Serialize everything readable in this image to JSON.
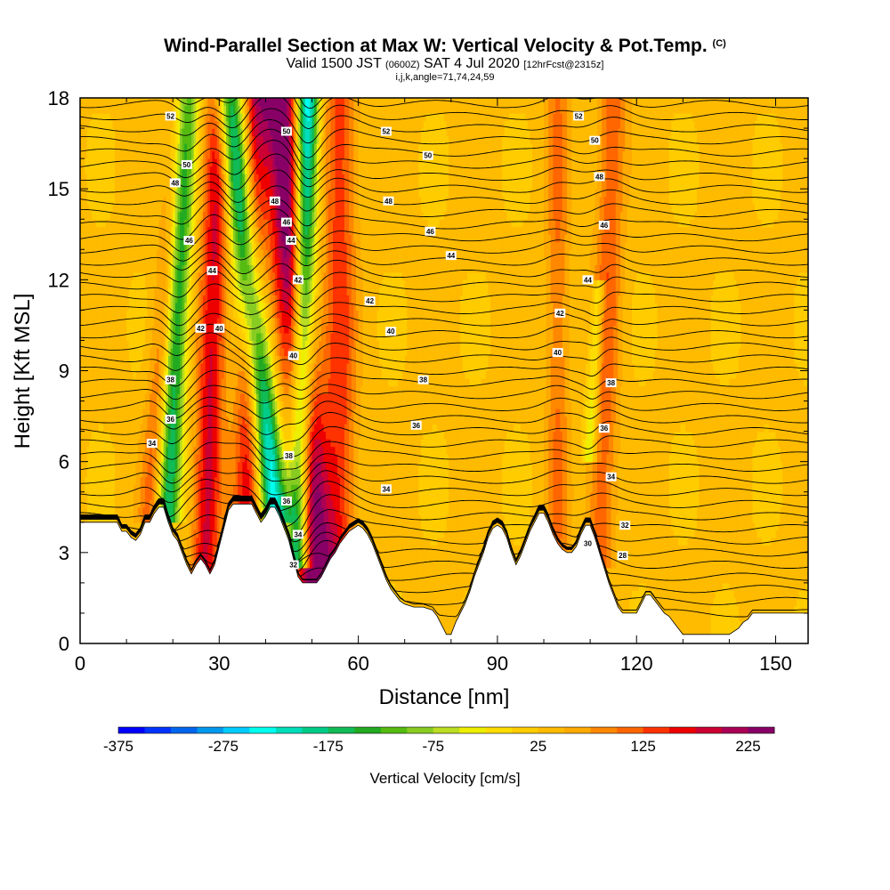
{
  "header": {
    "title": "Wind-Parallel Section at Max W: Vertical Velocity & Pot.Temp.",
    "title_mark": "(C)",
    "valid_prefix": "Valid 1500 JST",
    "valid_utc": "(0600Z)",
    "valid_date": "SAT 4 Jul 2020",
    "forecast_note": "[12hrFcst@2315z]",
    "indices": "i,j,k,angle=71,74,24,59"
  },
  "chart_data": {
    "type": "heatmap",
    "xlabel": "Distance [nm]",
    "ylabel": "Height [Kft MSL]",
    "xlim": [
      0,
      157
    ],
    "ylim": [
      0,
      18
    ],
    "x_ticks": [
      "0",
      "30",
      "60",
      "90",
      "120",
      "150"
    ],
    "y_ticks": [
      "0",
      "3",
      "6",
      "9",
      "12",
      "15",
      "18"
    ],
    "colorbar": {
      "label": "Vertical Velocity [cm/s]",
      "ticks": [
        "-375",
        "-275",
        "-175",
        "-75",
        "25",
        "125",
        "225"
      ],
      "min": -375,
      "max": 250,
      "step": 25,
      "colors": [
        "#0000ff",
        "#0033ff",
        "#0066ee",
        "#0099ee",
        "#00ccff",
        "#00ffee",
        "#00ddbb",
        "#00cc88",
        "#11bb55",
        "#22aa22",
        "#55bb11",
        "#88cc22",
        "#bbdd22",
        "#eeee00",
        "#ffdd00",
        "#ffcc00",
        "#ffbb00",
        "#ffaa00",
        "#ff8800",
        "#ff6600",
        "#ff3300",
        "#ee0000",
        "#cc0033",
        "#aa0055",
        "#880066"
      ]
    },
    "terrain_top_kft": [
      [
        0,
        4.0
      ],
      [
        4,
        4.0
      ],
      [
        8,
        4.0
      ],
      [
        9,
        3.7
      ],
      [
        10,
        3.7
      ],
      [
        11,
        3.5
      ],
      [
        12,
        3.4
      ],
      [
        13,
        3.6
      ],
      [
        14,
        4.0
      ],
      [
        15,
        4.0
      ],
      [
        16,
        4.3
      ],
      [
        17,
        4.5
      ],
      [
        18,
        4.5
      ],
      [
        19,
        4.0
      ],
      [
        20,
        3.6
      ],
      [
        21,
        3.4
      ],
      [
        22,
        3.0
      ],
      [
        23,
        2.6
      ],
      [
        24,
        2.3
      ],
      [
        25,
        2.6
      ],
      [
        26,
        2.8
      ],
      [
        27,
        2.6
      ],
      [
        28,
        2.3
      ],
      [
        29,
        2.6
      ],
      [
        30,
        3.2
      ],
      [
        31,
        3.8
      ],
      [
        32,
        4.4
      ],
      [
        33,
        4.6
      ],
      [
        34,
        4.6
      ],
      [
        35,
        4.6
      ],
      [
        36,
        4.6
      ],
      [
        37,
        4.6
      ],
      [
        38,
        4.3
      ],
      [
        39,
        4.0
      ],
      [
        40,
        4.2
      ],
      [
        41,
        4.5
      ],
      [
        42,
        4.5
      ],
      [
        43,
        4.2
      ],
      [
        44,
        3.8
      ],
      [
        45,
        3.4
      ],
      [
        46,
        2.8
      ],
      [
        47,
        2.2
      ],
      [
        48,
        2.0
      ],
      [
        49,
        2.0
      ],
      [
        50,
        2.0
      ],
      [
        51,
        2.0
      ],
      [
        52,
        2.2
      ],
      [
        53,
        2.5
      ],
      [
        54,
        2.8
      ],
      [
        55,
        3.0
      ],
      [
        56,
        3.3
      ],
      [
        57,
        3.5
      ],
      [
        58,
        3.7
      ],
      [
        59,
        3.8
      ],
      [
        60,
        3.9
      ],
      [
        61,
        3.8
      ],
      [
        62,
        3.6
      ],
      [
        63,
        3.3
      ],
      [
        64,
        2.9
      ],
      [
        65,
        2.5
      ],
      [
        66,
        2.1
      ],
      [
        67,
        1.8
      ],
      [
        68,
        1.6
      ],
      [
        69,
        1.4
      ],
      [
        70,
        1.3
      ],
      [
        72,
        1.2
      ],
      [
        74,
        1.2
      ],
      [
        76,
        1.1
      ],
      [
        77,
        0.9
      ],
      [
        78,
        0.6
      ],
      [
        79,
        0.3
      ],
      [
        80,
        0.3
      ],
      [
        81,
        0.7
      ],
      [
        82,
        1.0
      ],
      [
        83,
        1.3
      ],
      [
        84,
        1.7
      ],
      [
        85,
        2.2
      ],
      [
        86,
        2.6
      ],
      [
        87,
        3.0
      ],
      [
        88,
        3.5
      ],
      [
        89,
        3.8
      ],
      [
        90,
        3.9
      ],
      [
        91,
        3.8
      ],
      [
        92,
        3.5
      ],
      [
        93,
        3.0
      ],
      [
        94,
        2.6
      ],
      [
        95,
        2.9
      ],
      [
        96,
        3.3
      ],
      [
        97,
        3.7
      ],
      [
        98,
        4.0
      ],
      [
        99,
        4.3
      ],
      [
        100,
        4.3
      ],
      [
        101,
        4.0
      ],
      [
        102,
        3.6
      ],
      [
        103,
        3.3
      ],
      [
        104,
        3.1
      ],
      [
        105,
        3.0
      ],
      [
        106,
        3.0
      ],
      [
        107,
        3.2
      ],
      [
        108,
        3.6
      ],
      [
        109,
        3.9
      ],
      [
        110,
        3.9
      ],
      [
        111,
        3.5
      ],
      [
        112,
        3.0
      ],
      [
        113,
        2.5
      ],
      [
        114,
        2.0
      ],
      [
        115,
        1.6
      ],
      [
        116,
        1.2
      ],
      [
        117,
        1.0
      ],
      [
        118,
        1.0
      ],
      [
        120,
        1.0
      ],
      [
        121,
        1.3
      ],
      [
        122,
        1.6
      ],
      [
        123,
        1.6
      ],
      [
        124,
        1.4
      ],
      [
        125,
        1.2
      ],
      [
        126,
        1.0
      ],
      [
        127,
        0.9
      ],
      [
        128,
        0.7
      ],
      [
        129,
        0.5
      ],
      [
        130,
        0.3
      ],
      [
        132,
        0.3
      ],
      [
        134,
        0.3
      ],
      [
        136,
        0.3
      ],
      [
        138,
        0.3
      ],
      [
        140,
        0.3
      ],
      [
        142,
        0.5
      ],
      [
        143,
        0.7
      ],
      [
        144,
        0.8
      ],
      [
        145,
        1.0
      ],
      [
        147,
        1.0
      ],
      [
        150,
        1.0
      ],
      [
        153,
        1.0
      ],
      [
        157,
        1.0
      ]
    ],
    "updraft_bands": [
      {
        "x_bottom": 27,
        "x_top": 30,
        "width": 3.0,
        "peak": 150,
        "kft_bottom": 2.5,
        "kft_top": 18
      },
      {
        "x_bottom": 36,
        "x_top": 38,
        "width": 3.0,
        "peak": 140,
        "kft_bottom": 4.5,
        "kft_top": 18
      },
      {
        "x_bottom": 51,
        "x_top": 43,
        "width": 4.0,
        "peak": 240,
        "kft_bottom": 2.0,
        "kft_top": 18
      },
      {
        "x_bottom": 56,
        "x_top": 56,
        "width": 3.5,
        "peak": 110,
        "kft_bottom": 3.0,
        "kft_top": 18
      },
      {
        "x_bottom": 15,
        "x_top": 22,
        "width": 2.5,
        "peak": 80,
        "kft_bottom": 4.5,
        "kft_top": 18
      },
      {
        "x_bottom": 112,
        "x_top": 115,
        "width": 3.0,
        "peak": 90,
        "kft_bottom": 3.0,
        "kft_top": 18
      },
      {
        "x_bottom": 103,
        "x_top": 103,
        "width": 2.5,
        "peak": 70,
        "kft_bottom": 3.5,
        "kft_top": 18
      }
    ],
    "downdraft_bands": [
      {
        "x_bottom": 19,
        "x_top": 23,
        "width": 2.5,
        "peak": -200,
        "kft_bottom": 4.5,
        "kft_top": 18
      },
      {
        "x_bottom": 42,
        "x_top": 32,
        "width": 3.0,
        "peak": -260,
        "kft_bottom": 4.5,
        "kft_top": 18
      },
      {
        "x_bottom": 47,
        "x_top": 49,
        "width": 2.5,
        "peak": -300,
        "kft_bottom": 3.0,
        "kft_top": 18
      },
      {
        "x_bottom": 110,
        "x_top": 112,
        "width": 1.5,
        "peak": -100,
        "kft_bottom": 6.5,
        "kft_top": 12
      }
    ],
    "contour_labels": [
      {
        "text": "52",
        "x": 19.5,
        "y": 17.4
      },
      {
        "text": "50",
        "x": 23,
        "y": 15.8
      },
      {
        "text": "48",
        "x": 20.5,
        "y": 15.2
      },
      {
        "text": "46",
        "x": 23.5,
        "y": 13.3
      },
      {
        "text": "44",
        "x": 28.5,
        "y": 12.3
      },
      {
        "text": "42",
        "x": 26,
        "y": 10.4
      },
      {
        "text": "40",
        "x": 30,
        "y": 10.4
      },
      {
        "text": "38",
        "x": 19.5,
        "y": 8.7
      },
      {
        "text": "36",
        "x": 19.5,
        "y": 7.4
      },
      {
        "text": "34",
        "x": 15.5,
        "y": 6.6
      },
      {
        "text": "50",
        "x": 44.5,
        "y": 16.9
      },
      {
        "text": "48",
        "x": 42,
        "y": 14.6
      },
      {
        "text": "46",
        "x": 44.5,
        "y": 13.9
      },
      {
        "text": "44",
        "x": 45.5,
        "y": 13.3
      },
      {
        "text": "42",
        "x": 47,
        "y": 12.0
      },
      {
        "text": "40",
        "x": 46,
        "y": 9.5
      },
      {
        "text": "38",
        "x": 45,
        "y": 6.2
      },
      {
        "text": "36",
        "x": 44.5,
        "y": 4.7
      },
      {
        "text": "34",
        "x": 47,
        "y": 3.6
      },
      {
        "text": "32",
        "x": 46,
        "y": 2.6
      },
      {
        "text": "52",
        "x": 66,
        "y": 16.9
      },
      {
        "text": "50",
        "x": 75,
        "y": 16.1
      },
      {
        "text": "48",
        "x": 66.5,
        "y": 14.6
      },
      {
        "text": "46",
        "x": 75.5,
        "y": 13.6
      },
      {
        "text": "44",
        "x": 80,
        "y": 12.8
      },
      {
        "text": "42",
        "x": 62.5,
        "y": 11.3
      },
      {
        "text": "40",
        "x": 67,
        "y": 10.3
      },
      {
        "text": "38",
        "x": 74,
        "y": 8.7
      },
      {
        "text": "36",
        "x": 72.5,
        "y": 7.2
      },
      {
        "text": "34",
        "x": 66,
        "y": 5.1
      },
      {
        "text": "52",
        "x": 107.5,
        "y": 17.4
      },
      {
        "text": "50",
        "x": 111,
        "y": 16.6
      },
      {
        "text": "48",
        "x": 112,
        "y": 15.4
      },
      {
        "text": "46",
        "x": 113,
        "y": 13.8
      },
      {
        "text": "44",
        "x": 109.5,
        "y": 12.0
      },
      {
        "text": "42",
        "x": 103.5,
        "y": 10.9
      },
      {
        "text": "40",
        "x": 103,
        "y": 9.6
      },
      {
        "text": "38",
        "x": 114.5,
        "y": 8.6
      },
      {
        "text": "36",
        "x": 113,
        "y": 7.1
      },
      {
        "text": "34",
        "x": 114.5,
        "y": 5.5
      },
      {
        "text": "32",
        "x": 117.5,
        "y": 3.9
      },
      {
        "text": "30",
        "x": 109.5,
        "y": 3.3
      },
      {
        "text": "28",
        "x": 117,
        "y": 2.9
      }
    ],
    "grid": false
  }
}
